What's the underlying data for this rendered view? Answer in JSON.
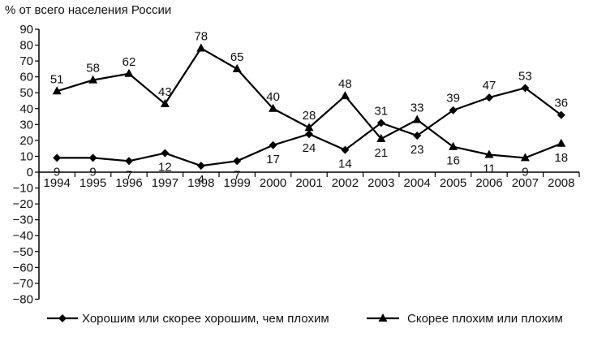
{
  "chart_data": {
    "type": "line",
    "title": "% от всего населения России",
    "categories": [
      "1994",
      "1995",
      "1996",
      "1997",
      "1998",
      "1999",
      "2000",
      "2001",
      "2002",
      "2003",
      "2004",
      "2005",
      "2006",
      "2007",
      "2008"
    ],
    "ylim": [
      -80,
      90
    ],
    "yticks": [
      "90",
      "80",
      "70",
      "60",
      "50",
      "40",
      "30",
      "20",
      "10",
      "0",
      "−10",
      "−20",
      "−30",
      "−40",
      "−50",
      "−60",
      "−70",
      "−80"
    ],
    "grid": false,
    "legend_position": "bottom",
    "series": [
      {
        "name": "Хорошим или скорее хорошим, чем плохим",
        "marker": "diamond",
        "color": "#000000",
        "values": [
          9,
          9,
          7,
          12,
          4,
          7,
          17,
          24,
          14,
          31,
          23,
          39,
          47,
          53,
          36
        ],
        "labels": [
          "9",
          "9",
          "7",
          "12",
          "4",
          "7",
          "17",
          "24",
          "14",
          "31",
          "23",
          "39",
          "47",
          "53",
          "36"
        ]
      },
      {
        "name": "Скорее плохим или плохим",
        "marker": "triangle",
        "color": "#000000",
        "values": [
          51,
          58,
          62,
          43,
          78,
          65,
          40,
          28,
          48,
          21,
          33,
          16,
          11,
          9,
          18
        ],
        "labels": [
          "51",
          "58",
          "62",
          "43",
          "78",
          "65",
          "40",
          "28",
          "48",
          "21",
          "33",
          "16",
          "11",
          "9",
          "18"
        ]
      }
    ]
  }
}
